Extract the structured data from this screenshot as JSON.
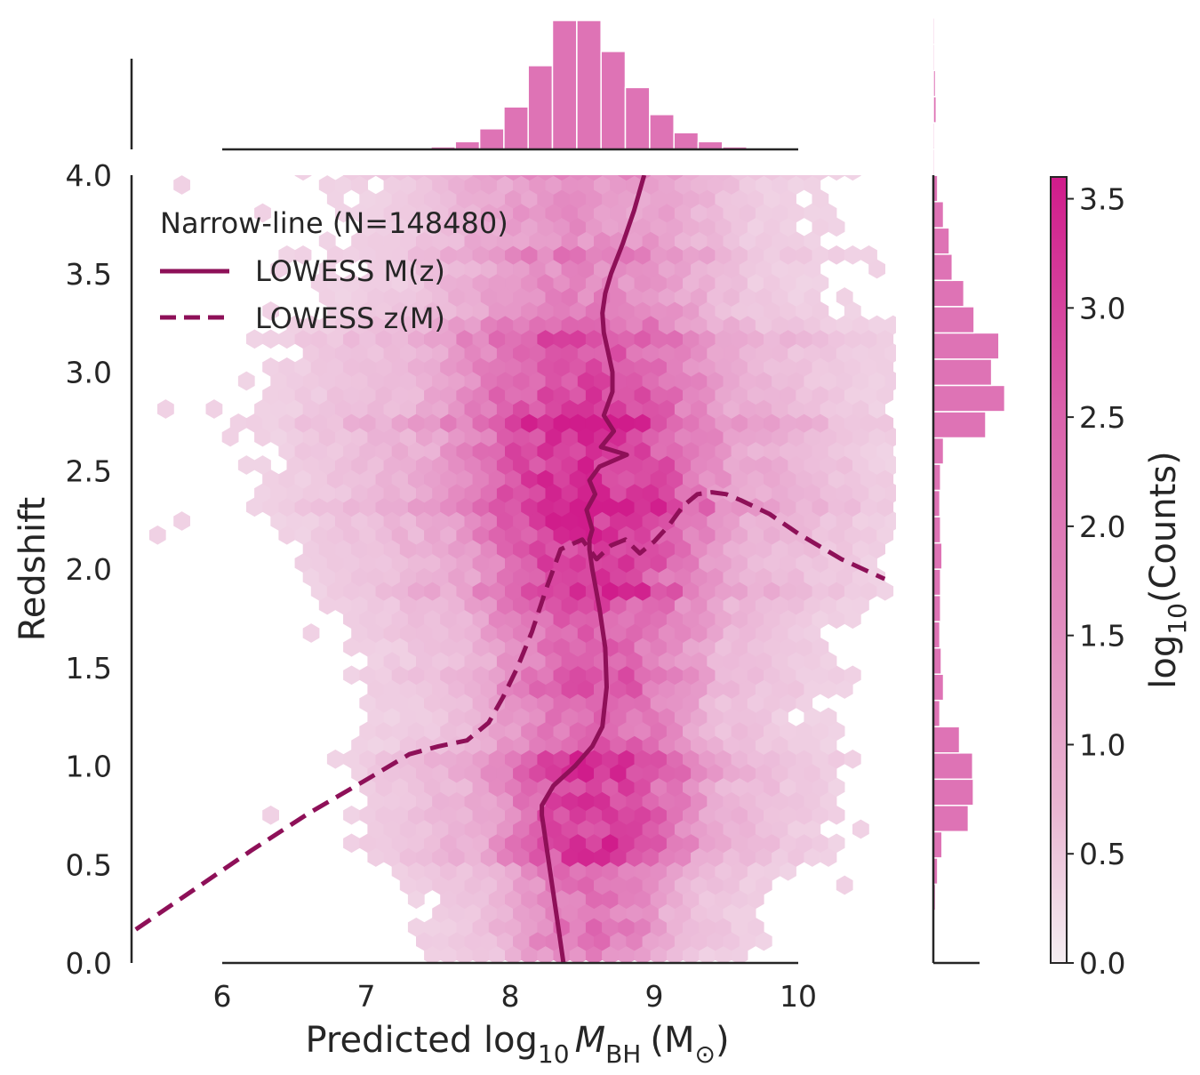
{
  "chart_data": {
    "type": "hexbin",
    "title": "",
    "xlabel": "Predicted log",
    "xlabel_sub": "10",
    "xlabel_M": "M",
    "xlabel_M_sub": "BH",
    "xlabel_unit": "(M",
    "xlabel_unit_sub": "⊙",
    "xlabel_close": ")",
    "ylabel": "Redshift",
    "xlim": [
      5.4,
      10.7
    ],
    "ylim": [
      0.0,
      4.0
    ],
    "x_ticks": [
      6,
      7,
      8,
      9,
      10
    ],
    "y_ticks": [
      "0.0",
      "0.5",
      "1.0",
      "1.5",
      "2.0",
      "2.5",
      "3.0",
      "3.5",
      "4.0"
    ],
    "colorbar": {
      "label": "log",
      "label_sub": "10",
      "label_tail": "(Counts)",
      "range": [
        0.0,
        3.6
      ],
      "ticks": [
        "0.0",
        "0.5",
        "1.0",
        "1.5",
        "2.0",
        "2.5",
        "3.0",
        "3.5"
      ],
      "color_low": "#f5eef2",
      "color_high": "#d01c8b"
    },
    "legend": {
      "title": "Narrow-line (N=148480)",
      "entries": [
        {
          "label": "LOWESS M(z)",
          "style": "solid"
        },
        {
          "label": "LOWESS z(M)",
          "style": "dashed"
        }
      ],
      "placement": "upper-left"
    },
    "series": [
      {
        "name": "LOWESS M(z)",
        "x": [
          8.37,
          8.33,
          8.29,
          8.25,
          8.23,
          8.22,
          8.22,
          8.3,
          8.45,
          8.57,
          8.64,
          8.67,
          8.66,
          8.62,
          8.57,
          8.55,
          8.55,
          8.57,
          8.53,
          8.59,
          8.55,
          8.62,
          8.81,
          8.63,
          8.72,
          8.65,
          8.71,
          8.71,
          8.68,
          8.65,
          8.64,
          8.66,
          8.7,
          8.78,
          8.86,
          8.93
        ],
        "y": [
          0.0,
          0.2,
          0.4,
          0.6,
          0.7,
          0.75,
          0.8,
          0.9,
          1.0,
          1.1,
          1.2,
          1.4,
          1.6,
          1.8,
          2.0,
          2.1,
          2.15,
          2.2,
          2.3,
          2.38,
          2.45,
          2.52,
          2.58,
          2.62,
          2.7,
          2.78,
          2.9,
          3.0,
          3.1,
          3.2,
          3.3,
          3.4,
          3.5,
          3.65,
          3.82,
          4.0
        ]
      },
      {
        "name": "LOWESS z(M)",
        "x": [
          5.4,
          5.8,
          6.2,
          6.6,
          7.0,
          7.3,
          7.5,
          7.7,
          7.85,
          7.95,
          8.05,
          8.15,
          8.25,
          8.35,
          8.5,
          8.6,
          8.7,
          8.8,
          8.9,
          9.0,
          9.1,
          9.2,
          9.3,
          9.4,
          9.5,
          9.6,
          9.8,
          10.0,
          10.3,
          10.6
        ],
        "y": [
          0.17,
          0.37,
          0.57,
          0.76,
          0.93,
          1.06,
          1.1,
          1.13,
          1.22,
          1.35,
          1.5,
          1.68,
          1.9,
          2.1,
          2.15,
          2.05,
          2.12,
          2.15,
          2.08,
          2.14,
          2.22,
          2.32,
          2.38,
          2.39,
          2.38,
          2.35,
          2.28,
          2.18,
          2.05,
          1.95
        ]
      }
    ],
    "marginal_x": {
      "bin_start": 7.45,
      "bin_width": 0.1687,
      "counts": [
        0.02,
        0.06,
        0.16,
        0.33,
        0.65,
        1.0,
        1.0,
        0.76,
        0.48,
        0.27,
        0.13,
        0.06,
        0.02
      ]
    },
    "marginal_y": {
      "bin_start": 0.0,
      "bin_width": 0.1333,
      "counts": [
        0.02,
        0.02,
        0.03,
        0.06,
        0.12,
        0.48,
        0.55,
        0.54,
        0.36,
        0.09,
        0.14,
        0.11,
        0.09,
        0.1,
        0.1,
        0.12,
        0.1,
        0.09,
        0.1,
        0.14,
        0.72,
        0.98,
        0.8,
        0.9,
        0.56,
        0.42,
        0.26,
        0.22,
        0.14,
        0.06,
        0.02,
        0.02,
        0.04,
        0.03,
        0.02,
        0.02,
        0.01,
        0.01,
        0.01,
        0.01
      ]
    }
  }
}
